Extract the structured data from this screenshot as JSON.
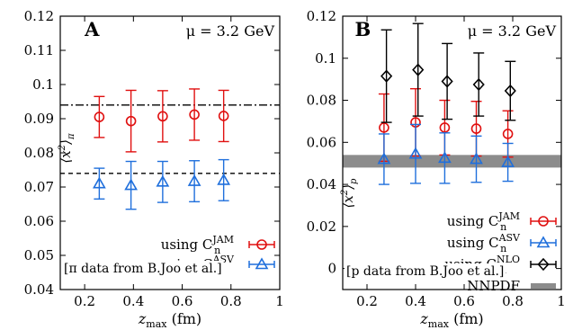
{
  "chart_data": [
    {
      "type": "scatter",
      "panel_label": "A",
      "annotation": "μ = 3.2 GeV",
      "xlabel": "z_max (fm)",
      "xlabel_main": "z",
      "xlabel_sub": "max",
      "xlabel_unit": " (fm)",
      "ylabel": "⟨x²⟩_π",
      "ylabel_main": "⟨x",
      "ylabel_sup": "2",
      "ylabel_close": "⟩",
      "ylabel_sub": "π",
      "xlim": [
        0.1,
        1.0
      ],
      "ylim": [
        0.04,
        0.12
      ],
      "xticks": [
        0.2,
        0.4,
        0.6,
        0.8,
        1
      ],
      "xtick_labels": [
        "0.2",
        "0.4",
        "0.6",
        "0.8",
        "1"
      ],
      "yticks": [
        0.04,
        0.05,
        0.06,
        0.07,
        0.08,
        0.09,
        0.1,
        0.11,
        0.12
      ],
      "ytick_labels": [
        "0.04",
        "0.05",
        "0.06",
        "0.07",
        "0.08",
        "0.09",
        "0.1",
        "0.11",
        "0.12"
      ],
      "reference_lines": [
        {
          "y": 0.094,
          "style": "dash-dot"
        },
        {
          "y": 0.074,
          "style": "dashed"
        }
      ],
      "series": [
        {
          "label_prefix": "using C",
          "label_sub": "n",
          "label_sup": "JAM",
          "color": "#e01010",
          "marker": "circle",
          "points": [
            {
              "x": 0.26,
              "y": 0.0905,
              "err": 0.006
            },
            {
              "x": 0.39,
              "y": 0.0893,
              "err": 0.009
            },
            {
              "x": 0.52,
              "y": 0.0907,
              "err": 0.0075
            },
            {
              "x": 0.65,
              "y": 0.0912,
              "err": 0.0075
            },
            {
              "x": 0.77,
              "y": 0.0908,
              "err": 0.0075
            }
          ]
        },
        {
          "label_prefix": "using C",
          "label_sub": "n",
          "label_sup": "ASV",
          "color": "#1f6fdc",
          "marker": "triangle",
          "points": [
            {
              "x": 0.26,
              "y": 0.071,
              "err": 0.0045
            },
            {
              "x": 0.39,
              "y": 0.0705,
              "err": 0.007
            },
            {
              "x": 0.52,
              "y": 0.0715,
              "err": 0.006
            },
            {
              "x": 0.65,
              "y": 0.0717,
              "err": 0.006
            },
            {
              "x": 0.77,
              "y": 0.072,
              "err": 0.006
            }
          ]
        }
      ],
      "note": "[π data from B.Joo et al.]"
    },
    {
      "type": "scatter",
      "panel_label": "B",
      "annotation": "μ = 3.2 GeV",
      "xlabel": "z_max (fm)",
      "xlabel_main": "z",
      "xlabel_sub": "max",
      "xlabel_unit": " (fm)",
      "ylabel": "⟨x²⟩_p",
      "ylabel_main": "⟨x",
      "ylabel_sup": "2",
      "ylabel_close": "⟩",
      "ylabel_sub": "p",
      "xlim": [
        0.1,
        1.0
      ],
      "ylim": [
        -0.01,
        0.12
      ],
      "xticks": [
        0.2,
        0.4,
        0.6,
        0.8,
        1
      ],
      "xtick_labels": [
        "0.2",
        "0.4",
        "0.6",
        "0.8",
        "1"
      ],
      "yticks": [
        0,
        0.02,
        0.04,
        0.06,
        0.08,
        0.1,
        0.12
      ],
      "ytick_labels": [
        "0",
        "0.02",
        "0.04",
        "0.06",
        "0.08",
        "0.1",
        "0.12"
      ],
      "band": {
        "label": "NNPDF",
        "y_low": 0.048,
        "y_high": 0.054,
        "color": "#8c8c8c"
      },
      "series": [
        {
          "label_prefix": "using C",
          "label_sub": "n",
          "label_sup": "JAM",
          "color": "#e01010",
          "marker": "circle",
          "points": [
            {
              "x": 0.27,
              "y": 0.067,
              "err": 0.016
            },
            {
              "x": 0.4,
              "y": 0.0695,
              "err": 0.016
            },
            {
              "x": 0.52,
              "y": 0.067,
              "err": 0.013
            },
            {
              "x": 0.65,
              "y": 0.0665,
              "err": 0.013
            },
            {
              "x": 0.78,
              "y": 0.064,
              "err": 0.011
            }
          ]
        },
        {
          "label_prefix": "using C",
          "label_sub": "n",
          "label_sup": "ASV",
          "color": "#1f6fdc",
          "marker": "triangle",
          "points": [
            {
              "x": 0.27,
              "y": 0.052,
              "err": 0.012
            },
            {
              "x": 0.4,
              "y": 0.0545,
              "err": 0.014
            },
            {
              "x": 0.52,
              "y": 0.0525,
              "err": 0.012
            },
            {
              "x": 0.65,
              "y": 0.052,
              "err": 0.011
            },
            {
              "x": 0.78,
              "y": 0.0505,
              "err": 0.009
            }
          ]
        },
        {
          "label_prefix": "using C",
          "label_sub": "n",
          "label_sup": "NLO",
          "color": "#000000",
          "marker": "diamond",
          "points": [
            {
              "x": 0.28,
              "y": 0.0915,
              "err": 0.022
            },
            {
              "x": 0.41,
              "y": 0.0945,
              "err": 0.022
            },
            {
              "x": 0.53,
              "y": 0.089,
              "err": 0.018
            },
            {
              "x": 0.66,
              "y": 0.0875,
              "err": 0.015
            },
            {
              "x": 0.79,
              "y": 0.0845,
              "err": 0.014
            }
          ]
        }
      ],
      "note": "[p data from B.Joo et al.]"
    }
  ]
}
